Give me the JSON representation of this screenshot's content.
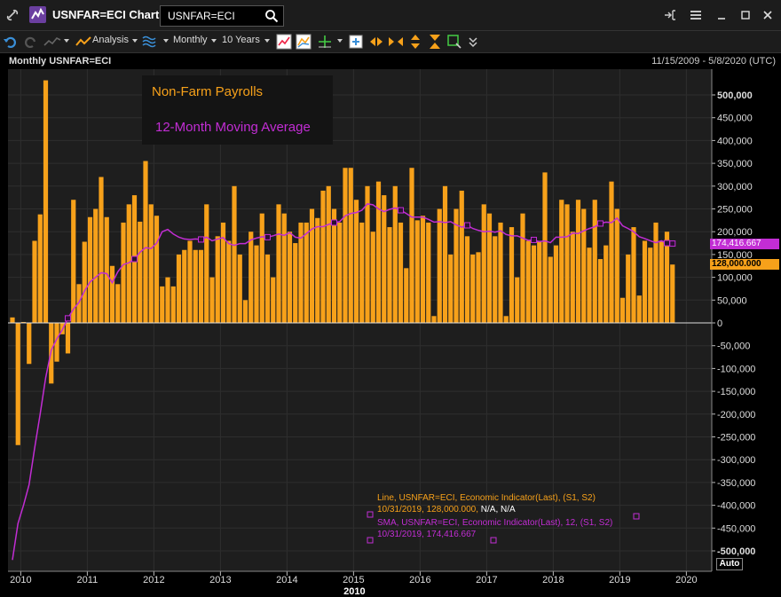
{
  "window": {
    "title": "USNFAR=ECI Chart",
    "search_value": "USNFAR=ECI"
  },
  "toolbar": {
    "analysis_label": "Analysis",
    "interval_label": "Monthly",
    "range_label": "10 Years"
  },
  "chart_header": {
    "title": "Monthly USNFAR=ECI",
    "date_range": "11/15/2009 - 5/8/2020 (UTC)"
  },
  "legend": {
    "series1": "Non-Farm Payrolls",
    "series2": "12-Month Moving Average"
  },
  "tooltip": {
    "line1": "Line, USNFAR=ECI, Economic Indicator(Last), (S1, S2)",
    "line2a": "10/31/2019, 128,000.000,",
    "line2b": "N/A, N/A",
    "line3": "SMA, USNFAR=ECI, Economic Indicator(Last),  12, (S1, S2)",
    "line4": "10/31/2019, 174,416.667"
  },
  "last_values": {
    "sma": "174,416.667",
    "nfp": "128,000.000"
  },
  "auto_label": "Auto",
  "colors": {
    "bars": "#f7a11a",
    "sma": "#c22dd4",
    "background": "#000000",
    "panel": "#1c1c1c"
  },
  "chart_data": {
    "type": "bar",
    "title": "Monthly USNFAR=ECI",
    "ylim": [
      -520000,
      560000
    ],
    "yticks": [
      500000,
      450000,
      400000,
      350000,
      300000,
      250000,
      200000,
      150000,
      100000,
      50000,
      0,
      -50000,
      -100000,
      -150000,
      -200000,
      -250000,
      -300000,
      -350000,
      -400000,
      -450000,
      -500000
    ],
    "ytick_labels": [
      "500,000",
      "450,000",
      "400,000",
      "350,000",
      "300,000",
      "250,000",
      "200,000",
      "150,000",
      "100,000",
      "50,000",
      "0",
      "-50,000",
      "-100,000",
      "-150,000",
      "-200,000",
      "-250,000",
      "-300,000",
      "-350,000",
      "-400,000",
      "-450,000",
      "-500,000"
    ],
    "xticks": [
      "2010",
      "2011",
      "2012",
      "2013",
      "2014",
      "2015",
      "2016",
      "2017",
      "2018",
      "2019",
      "2020"
    ],
    "x_year_label": "2010",
    "start": "2009-11",
    "end": "2019-10",
    "series": [
      {
        "name": "Non-Farm Payrolls",
        "values": [
          12000,
          -268000,
          2000,
          -90000,
          180000,
          238000,
          532000,
          -133000,
          -85000,
          -25000,
          -67000,
          270000,
          85000,
          178000,
          232000,
          250000,
          320000,
          232000,
          125000,
          85000,
          220000,
          260000,
          280000,
          222000,
          355000,
          260000,
          235000,
          80000,
          100000,
          80000,
          150000,
          160000,
          180000,
          160000,
          160000,
          260000,
          100000,
          190000,
          220000,
          180000,
          300000,
          150000,
          50000,
          200000,
          170000,
          240000,
          150000,
          100000,
          260000,
          240000,
          200000,
          175000,
          220000,
          220000,
          250000,
          230000,
          290000,
          300000,
          250000,
          220000,
          340000,
          340000,
          270000,
          220000,
          300000,
          200000,
          310000,
          280000,
          210000,
          300000,
          220000,
          120000,
          340000,
          225000,
          235000,
          220000,
          15000,
          250000,
          300000,
          150000,
          250000,
          290000,
          190000,
          150000,
          155000,
          260000,
          240000,
          190000,
          220000,
          15000,
          210000,
          100000,
          240000,
          180000,
          170000,
          180000,
          330000,
          145000,
          170000,
          270000,
          260000,
          200000,
          270000,
          250000,
          165000,
          270000,
          140000,
          170000,
          310000,
          250000,
          55000,
          150000,
          210000,
          60000,
          180000,
          165000,
          220000,
          180000,
          200000,
          128000
        ]
      },
      {
        "name": "12-Month Moving Average",
        "values": [
          -520000,
          -440000,
          -400000,
          -355000,
          -275000,
          -200000,
          -120000,
          -60000,
          -35000,
          -15000,
          10000,
          30000,
          45000,
          70000,
          90000,
          100000,
          110000,
          108000,
          88000,
          112000,
          128000,
          132000,
          140000,
          155000,
          165000,
          163000,
          175000,
          200000,
          205000,
          195000,
          188000,
          184000,
          183000,
          184000,
          183000,
          188000,
          180000,
          184000,
          187000,
          174000,
          170000,
          174000,
          174000,
          182000,
          186000,
          189000,
          188000,
          191000,
          195000,
          192000,
          198000,
          188000,
          186000,
          196000,
          206000,
          211000,
          211000,
          216000,
          220000,
          222000,
          235000,
          240000,
          242000,
          247000,
          261000,
          259000,
          250000,
          244000,
          249000,
          252000,
          247000,
          240000,
          232000,
          232000,
          232000,
          227000,
          221000,
          222000,
          220000,
          222000,
          215000,
          210000,
          214000,
          207000,
          203000,
          200000,
          201000,
          199000,
          202000,
          194000,
          191000,
          191000,
          186000,
          181000,
          182000,
          178000,
          180000,
          176000,
          188000,
          188000,
          189000,
          197000,
          196000,
          202000,
          207000,
          211000,
          218000,
          221000,
          220000,
          230000,
          213000,
          207000,
          200000,
          189000,
          185000,
          180000,
          176000,
          180000,
          175000,
          174000
        ]
      }
    ]
  }
}
